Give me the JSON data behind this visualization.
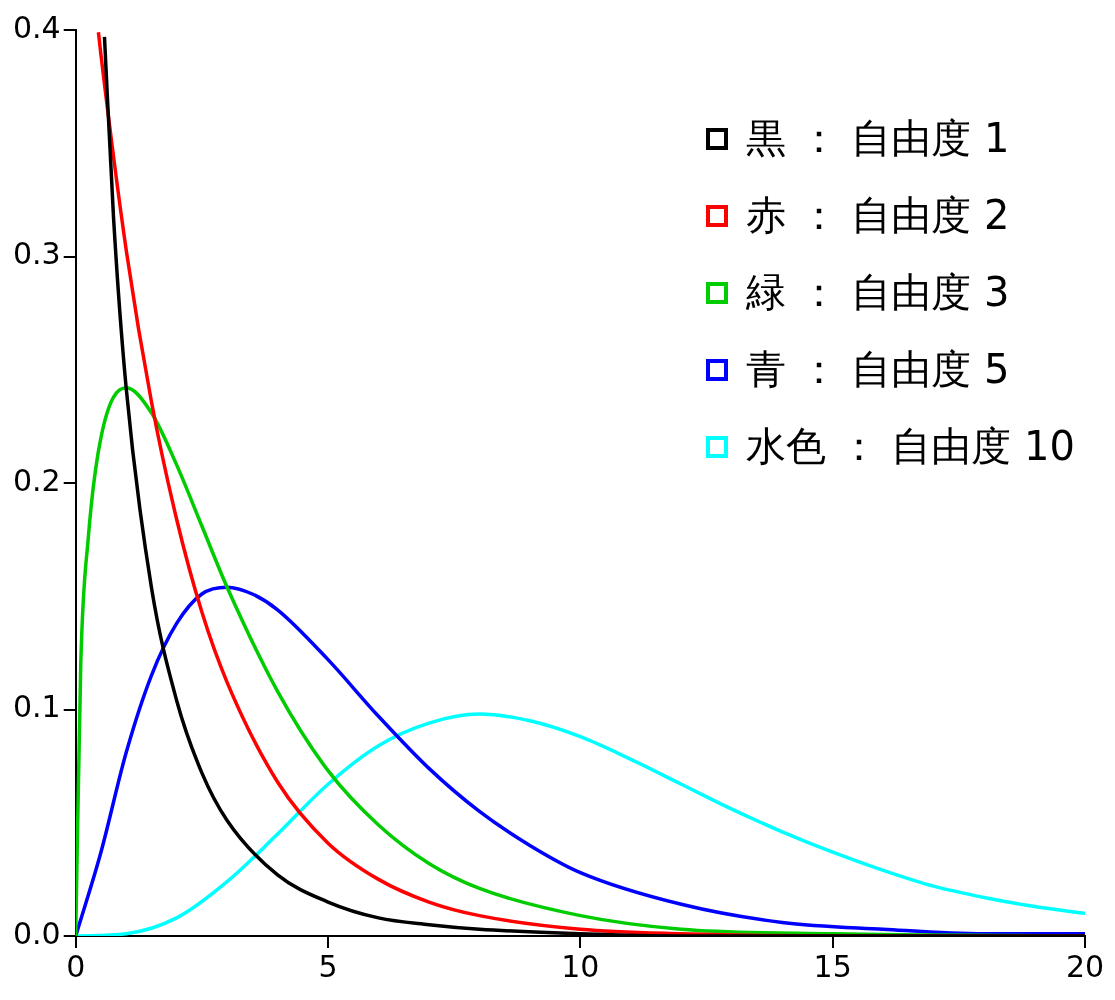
{
  "chart_data": {
    "type": "line",
    "xlim": [
      0,
      20
    ],
    "xticks": [
      0,
      5,
      10,
      15,
      20
    ],
    "ylim": [
      0,
      0.4
    ],
    "yticks": [
      {
        "value": 0,
        "label": "0.0"
      },
      0.1,
      0.2,
      0.3,
      0.4
    ],
    "grid": false,
    "legend": "top right",
    "marker": "none",
    "line_style": "solid",
    "series": [
      {
        "name": "黒 ： 自由度 1",
        "color": "#000000",
        "x": [
          0.57,
          0.75,
          1,
          1.5,
          2,
          2.5,
          3,
          4,
          5,
          6,
          7,
          8,
          10,
          12,
          15,
          20
        ],
        "values": [
          0.397,
          0.317,
          0.242,
          0.154,
          0.104,
          0.072,
          0.051,
          0.027,
          0.015,
          0.008,
          0.005,
          0.003,
          0.001,
          0,
          0,
          0
        ]
      },
      {
        "name": "赤 ： 自由度 2",
        "color": "#ff0000",
        "x": [
          0.45,
          0.5,
          1,
          1.5,
          2,
          2.5,
          3,
          4,
          5,
          6,
          7,
          8,
          10,
          12,
          15,
          20
        ],
        "values": [
          0.399,
          0.389,
          0.303,
          0.236,
          0.184,
          0.143,
          0.112,
          0.068,
          0.041,
          0.025,
          0.015,
          0.009,
          0.003,
          0.001,
          0,
          0
        ]
      },
      {
        "name": "緑 ： 自由度 3",
        "color": "#00cc00",
        "x": [
          0,
          0.1,
          0.25,
          0.5,
          1,
          1.5,
          2,
          2.5,
          3,
          4,
          5,
          6,
          7,
          8,
          10,
          12,
          15,
          20
        ],
        "values": [
          0,
          0.12,
          0.176,
          0.22,
          0.242,
          0.231,
          0.208,
          0.181,
          0.154,
          0.108,
          0.073,
          0.049,
          0.032,
          0.021,
          0.009,
          0.003,
          0.001,
          0
        ]
      },
      {
        "name": "青 ： 自由度 5",
        "color": "#0000ff",
        "x": [
          0,
          0.5,
          1,
          1.5,
          2,
          2.5,
          3,
          3.5,
          4,
          5,
          6,
          7,
          8,
          9,
          10,
          12,
          14,
          16,
          18,
          20
        ],
        "values": [
          0,
          0.037,
          0.081,
          0.115,
          0.138,
          0.151,
          0.154,
          0.151,
          0.144,
          0.122,
          0.097,
          0.074,
          0.055,
          0.04,
          0.028,
          0.014,
          0.006,
          0.003,
          0.001,
          0.001
        ]
      },
      {
        "name": "水色 ： 自由度 10",
        "color": "#00ffff",
        "x": [
          0,
          1,
          2,
          3,
          4,
          5,
          6,
          7,
          8,
          9,
          10,
          11,
          12,
          13,
          14,
          15,
          16,
          17,
          18,
          19,
          20
        ],
        "values": [
          0,
          0.001,
          0.008,
          0.024,
          0.045,
          0.067,
          0.084,
          0.094,
          0.098,
          0.095,
          0.088,
          0.078,
          0.067,
          0.056,
          0.046,
          0.037,
          0.029,
          0.022,
          0.017,
          0.013,
          0.01
        ]
      }
    ]
  }
}
